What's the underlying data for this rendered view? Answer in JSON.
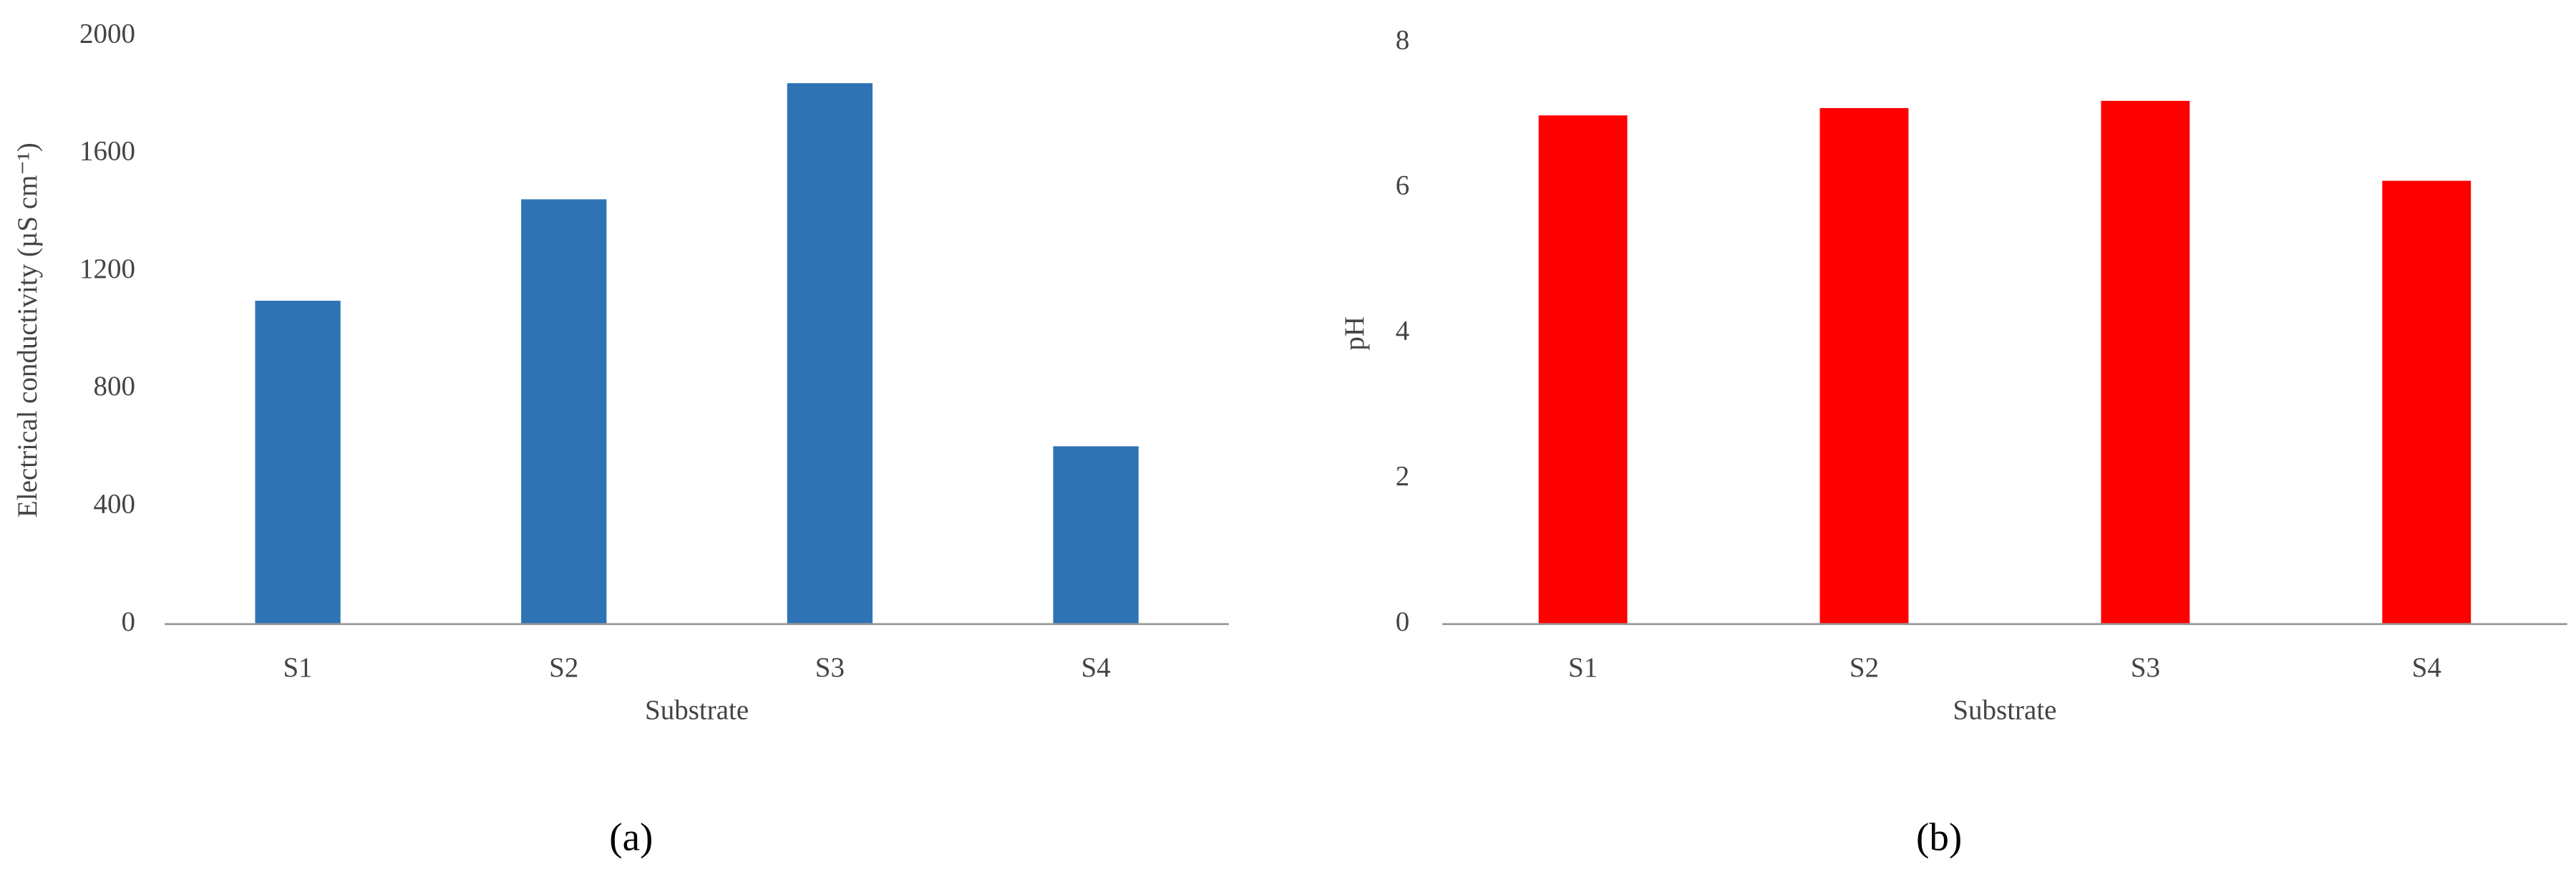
{
  "chart_data": [
    {
      "type": "bar",
      "panel_label": "(a)",
      "xlabel": "Substrate",
      "ylabel": "Electrical conductivity (µS cm⁻¹)",
      "categories": [
        "S1",
        "S2",
        "S3",
        "S4"
      ],
      "values": [
        1100,
        1445,
        1840,
        605
      ],
      "color": "#2e74b5",
      "ylim": [
        0,
        2000
      ],
      "yticks": [
        0,
        400,
        800,
        1200,
        1600,
        2000
      ],
      "grid": false
    },
    {
      "type": "bar",
      "panel_label": "(b)",
      "xlabel": "Substrate",
      "ylabel": "pH",
      "categories": [
        "S1",
        "S2",
        "S3",
        "S4"
      ],
      "values": [
        7.0,
        7.1,
        7.2,
        6.1
      ],
      "color": "#ff0000",
      "ylim": [
        0,
        8
      ],
      "yticks": [
        0,
        2,
        4,
        6,
        8
      ],
      "grid": false
    }
  ]
}
